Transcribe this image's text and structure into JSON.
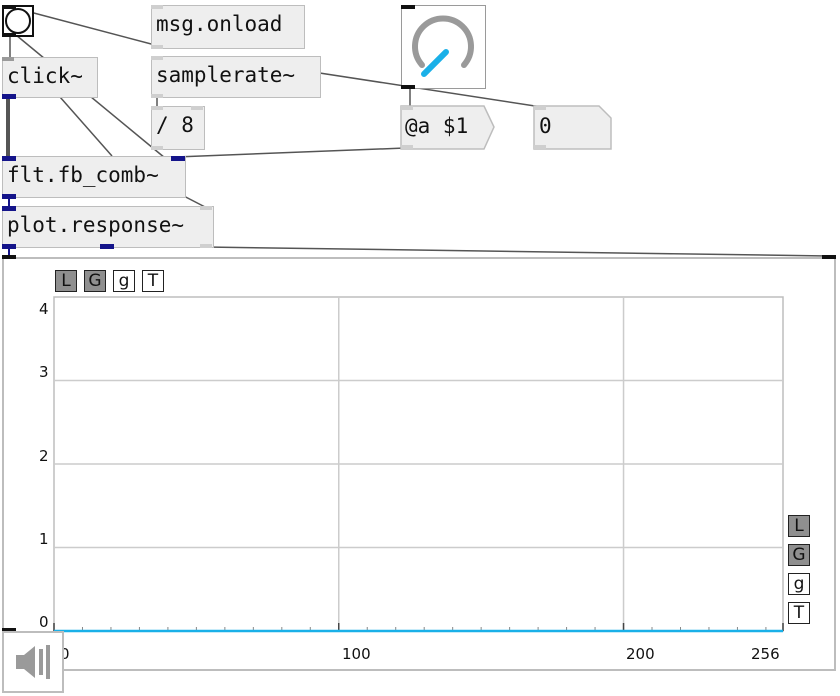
{
  "objects": {
    "click": "click~",
    "onload": "msg.onload",
    "samplerate": "samplerate~",
    "div8": "/ 8",
    "msg_a": "@a $1",
    "zero": "0",
    "comb": "flt.fb_comb~",
    "plot": "plot.response~"
  },
  "knob": {
    "accent": "#1ab0e8",
    "track": "#9a9a9a"
  },
  "plot": {
    "top_toggles": [
      "L",
      "G",
      "g",
      "T"
    ],
    "side_toggles": [
      "L",
      "G",
      "g",
      "T"
    ],
    "toggle_on": [
      true,
      true,
      false,
      false
    ],
    "y_ticks": [
      "4",
      "3",
      "2",
      "1",
      "0"
    ],
    "x_ticks": [
      "0",
      "100",
      "200",
      "256"
    ],
    "line_color": "#1ab0e8"
  },
  "chart_data": {
    "type": "line",
    "x_range": [
      0,
      256
    ],
    "ylim": [
      0,
      4
    ],
    "y_ticks": [
      0,
      1,
      2,
      3,
      4
    ],
    "x_ticks": [
      0,
      100,
      200,
      256
    ],
    "grid": true,
    "series": [
      {
        "x": [
          0,
          256
        ],
        "values": [
          0,
          0
        ]
      }
    ]
  },
  "dsp": {
    "icon": "speaker-icon"
  }
}
